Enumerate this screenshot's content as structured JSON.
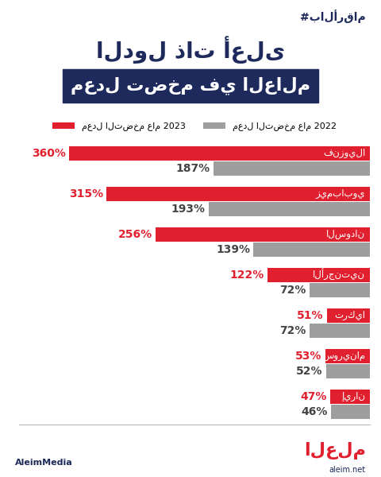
{
  "chart_data": {
    "type": "bar",
    "orientation": "horizontal",
    "title": "الدول ذات أعلى",
    "subtitle": "معدل تضخم في العالم",
    "annotations": [
      "#بالأرقام",
      "AleimMedia",
      "العلم",
      "aleim.net"
    ],
    "categories": [
      "فنزويلا",
      "زيمبابوي",
      "السودان",
      "الأرجنتين",
      "تركيا",
      "سورينام",
      "إيران"
    ],
    "series": [
      {
        "name": "معدل التضخم عام 2023",
        "color": "#e0202e",
        "values": [
          360,
          315,
          256,
          122,
          51,
          53,
          47
        ],
        "value_labels": [
          "360%",
          "315%",
          "256%",
          "122%",
          "51%",
          "53%",
          "47%"
        ]
      },
      {
        "name": "معدل التضخم عام 2022",
        "color": "#9e9e9e",
        "values": [
          187,
          193,
          139,
          72,
          72,
          52,
          46
        ],
        "value_labels": [
          "187%",
          "193%",
          "139%",
          "72%",
          "72%",
          "52%",
          "46%"
        ]
      }
    ],
    "xlim": [
      420,
      0
    ],
    "xticks": [],
    "data_labels": true,
    "tick_labels": false,
    "grid": false,
    "legend": "upper center"
  }
}
